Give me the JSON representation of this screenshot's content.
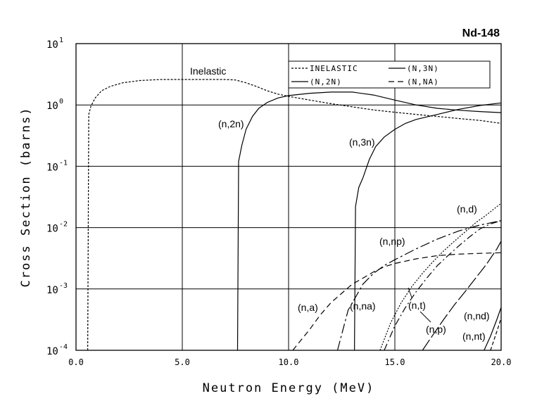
{
  "chart_data": {
    "type": "line",
    "title": "Nd-148",
    "xlabel": "Neutron Energy (MeV)",
    "ylabel": "Cross Section (barns)",
    "xlim": [
      0.0,
      20.0
    ],
    "ylim": [
      0.0001,
      10
    ],
    "yscale": "log",
    "grid": true,
    "legend_position": "top-right",
    "x_tick_labels": [
      "0.0",
      "5.0",
      "10.0",
      "15.0",
      "20.0"
    ],
    "y_tick_labels": [
      {
        "base": "10",
        "exp": "-4",
        "value": 0.0001
      },
      {
        "base": "10",
        "exp": "-3",
        "value": 0.001
      },
      {
        "base": "10",
        "exp": "-2",
        "value": 0.01
      },
      {
        "base": "10",
        "exp": "-1",
        "value": 0.1
      },
      {
        "base": "10",
        "exp": "0",
        "value": 1
      },
      {
        "base": "10",
        "exp": "1",
        "value": 10
      }
    ],
    "legend": [
      {
        "label": "INELASTIC",
        "dash": "3,2"
      },
      {
        "label": "(N,3N)",
        "dash": ""
      },
      {
        "label": "(N,2N)",
        "dash": ""
      },
      {
        "label": "(N,NA)",
        "dash": "8,5"
      }
    ],
    "series": [
      {
        "name": "INELASTIC",
        "dash": "3,2",
        "x": [
          0.55,
          0.6,
          0.7,
          0.9,
          1.2,
          1.6,
          2.2,
          3.0,
          4.0,
          5.0,
          6.0,
          7.0,
          7.5,
          8.0,
          8.5,
          9.0,
          9.5,
          10.0,
          11.0,
          12.0,
          13.0,
          14.0,
          15.0,
          16.0,
          17.0,
          18.0,
          19.0,
          20.0
        ],
        "y": [
          0.0001,
          0.7,
          0.95,
          1.3,
          1.7,
          2.0,
          2.3,
          2.5,
          2.6,
          2.6,
          2.6,
          2.6,
          2.55,
          2.3,
          2.0,
          1.7,
          1.5,
          1.38,
          1.2,
          1.05,
          0.93,
          0.83,
          0.76,
          0.7,
          0.65,
          0.6,
          0.56,
          0.5
        ]
      },
      {
        "name": "(N,2N)",
        "dash": "",
        "x": [
          7.6,
          7.65,
          7.8,
          8.0,
          8.3,
          8.6,
          9.0,
          9.5,
          10.0,
          11.0,
          12.0,
          13.0,
          14.0,
          15.0,
          16.0,
          17.0,
          18.0,
          19.0,
          20.0
        ],
        "y": [
          0.0001,
          0.12,
          0.22,
          0.4,
          0.65,
          0.88,
          1.1,
          1.3,
          1.42,
          1.55,
          1.62,
          1.62,
          1.45,
          1.2,
          1.0,
          0.88,
          0.82,
          0.78,
          0.75
        ]
      },
      {
        "name": "(N,3N)",
        "dash": "",
        "x": [
          13.1,
          13.15,
          13.3,
          13.5,
          13.8,
          14.1,
          14.5,
          15.0,
          15.5,
          16.0,
          17.0,
          18.0,
          19.0,
          20.0
        ],
        "y": [
          0.0001,
          0.022,
          0.045,
          0.065,
          0.13,
          0.21,
          0.3,
          0.4,
          0.5,
          0.58,
          0.7,
          0.85,
          0.98,
          1.08
        ]
      },
      {
        "name": "(N,NA)",
        "dash": "8,5",
        "x": [
          10.2,
          11.0,
          11.5,
          12.0,
          12.5,
          13.0,
          13.5,
          14.0,
          14.5,
          15.0,
          16.0,
          17.0,
          18.0,
          19.0,
          20.0
        ],
        "y": [
          0.0001,
          0.00022,
          0.00038,
          0.0006,
          0.00085,
          0.0012,
          0.0015,
          0.0019,
          0.0023,
          0.0026,
          0.0031,
          0.0035,
          0.0037,
          0.0038,
          0.0039
        ]
      },
      {
        "name": "(n,a)",
        "dash": "14,4,3,4",
        "x": [
          12.3,
          12.8,
          13.5,
          14.0,
          14.5,
          15.0,
          16.0,
          17.0,
          18.0,
          19.0,
          20.0
        ],
        "y": [
          0.0001,
          0.00045,
          0.0012,
          0.0018,
          0.0024,
          0.003,
          0.0045,
          0.0065,
          0.0088,
          0.011,
          0.013
        ]
      },
      {
        "name": "(n,d)",
        "dash": "2,2",
        "x": [
          14.3,
          14.8,
          15.3,
          15.8,
          16.3,
          16.8,
          17.3,
          17.8,
          18.3,
          18.8,
          19.3,
          20.0
        ],
        "y": [
          0.0001,
          0.00028,
          0.0006,
          0.0011,
          0.0018,
          0.0028,
          0.0042,
          0.006,
          0.0085,
          0.012,
          0.016,
          0.025
        ]
      },
      {
        "name": "(n,t)",
        "dash": "10,4,2,4",
        "x": [
          14.5,
          15.0,
          15.5,
          16.0,
          16.5,
          17.0,
          17.5,
          18.0,
          18.5,
          19.0,
          19.5,
          20.0
        ],
        "y": [
          0.0001,
          0.00025,
          0.0005,
          0.0009,
          0.0015,
          0.0024,
          0.0035,
          0.005,
          0.007,
          0.0095,
          0.0115,
          0.013
        ]
      },
      {
        "name": "(n,p)",
        "dash": "18,4",
        "x": [
          16.3,
          16.8,
          17.3,
          17.8,
          18.3,
          18.8,
          19.3,
          19.8,
          20.0
        ],
        "y": [
          0.0001,
          0.00018,
          0.00032,
          0.00055,
          0.0009,
          0.0015,
          0.0025,
          0.0045,
          0.006
        ]
      },
      {
        "name": "(n,nd)",
        "dash": "",
        "x": [
          19.2,
          19.5,
          19.8,
          20.0
        ],
        "y": [
          0.0001,
          0.00017,
          0.00032,
          0.0005
        ]
      },
      {
        "name": "(n,nt)",
        "dash": "5,3",
        "x": [
          19.5,
          19.7,
          19.9,
          20.0
        ],
        "y": [
          0.0001,
          0.00016,
          0.00026,
          0.00034
        ]
      }
    ],
    "annotations": [
      "Inelastic",
      "(n,2n)",
      "(n,3n)",
      "(n,d)",
      "(n,np)",
      "(n,a)",
      "(n,na)",
      "(n,t)",
      "(n,p)",
      "(n,nd)",
      "(n,nt)"
    ]
  }
}
